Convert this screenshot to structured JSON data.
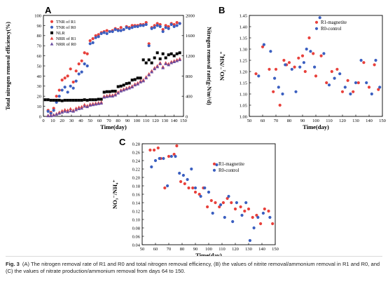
{
  "caption": {
    "label": "Fig. 3",
    "text": "(A) The nitrogen removal rate of R1 and R0 and total nitrogen removal efficiency, (B) the values of nitrite removal/ammonium removal in R1 and R0, and (C) the values of nitrate production/ammonium removal from days 64 to 150."
  },
  "chart_data": [
    {
      "panel": "A",
      "type": "scatter",
      "xlabel": "Time(day)",
      "ylabel": "Total nitrogen removal efficiency(%)",
      "y2label": "Nitrogen removal rate(g-N/m³/d)",
      "xlim": [
        0,
        150
      ],
      "xticks": [
        0,
        10,
        20,
        30,
        40,
        50,
        60,
        70,
        80,
        90,
        100,
        110,
        120,
        130,
        140,
        150
      ],
      "ylim": [
        0,
        100
      ],
      "yticks": [
        0,
        10,
        20,
        30,
        40,
        50,
        60,
        70,
        80,
        90,
        100
      ],
      "y2lim": [
        0,
        2000
      ],
      "y2ticks": [
        0,
        400,
        800,
        1200,
        1600,
        2000
      ],
      "legend_position": "top-left",
      "series": [
        {
          "name": "TNR of R1",
          "axis": "left",
          "marker": "circle",
          "color": "#e8413c",
          "x": [
            5,
            8,
            11,
            14,
            17,
            20,
            23,
            26,
            29,
            32,
            35,
            38,
            41,
            44,
            47,
            50,
            53,
            56,
            59,
            62,
            65,
            68,
            71,
            74,
            77,
            80,
            83,
            86,
            89,
            92,
            95,
            98,
            101,
            104,
            107,
            110,
            113,
            116,
            119,
            122,
            125,
            128,
            131,
            134,
            137,
            140,
            143,
            146
          ],
          "y": [
            6,
            4,
            8,
            20,
            26,
            36,
            38,
            40,
            47,
            34,
            45,
            52,
            55,
            63,
            62,
            75,
            77,
            80,
            81,
            83,
            84,
            85,
            84,
            85,
            87,
            86,
            88,
            86,
            89,
            88,
            90,
            90,
            90,
            91,
            91,
            93,
            72,
            88,
            90,
            92,
            91,
            86,
            90,
            89,
            92,
            91,
            93,
            92
          ]
        },
        {
          "name": "TNR of R0",
          "axis": "left",
          "marker": "circle",
          "color": "#3b5fc0",
          "x": [
            5,
            8,
            11,
            14,
            17,
            20,
            23,
            26,
            29,
            32,
            35,
            38,
            41,
            44,
            47,
            50,
            53,
            56,
            59,
            62,
            65,
            68,
            71,
            74,
            77,
            80,
            83,
            86,
            89,
            92,
            95,
            98,
            101,
            104,
            107,
            110,
            113,
            116,
            119,
            122,
            125,
            128,
            131,
            134,
            137,
            140,
            143,
            146
          ],
          "y": [
            5,
            3,
            6,
            14,
            20,
            26,
            29,
            24,
            30,
            28,
            35,
            42,
            44,
            52,
            50,
            72,
            73,
            78,
            79,
            82,
            83,
            82,
            84,
            84,
            86,
            85,
            85,
            86,
            88,
            87,
            88,
            89,
            89,
            90,
            90,
            91,
            70,
            87,
            88,
            90,
            89,
            84,
            88,
            87,
            91,
            89,
            90,
            92
          ]
        },
        {
          "name": "NLR",
          "axis": "right",
          "marker": "square",
          "color": "#000000",
          "x": [
            2,
            5,
            8,
            11,
            14,
            17,
            20,
            23,
            26,
            29,
            32,
            35,
            38,
            41,
            44,
            47,
            50,
            53,
            56,
            59,
            62,
            65,
            68,
            71,
            74,
            77,
            80,
            83,
            86,
            89,
            92,
            95,
            98,
            101,
            104,
            107,
            110,
            113,
            116,
            119,
            122,
            125,
            128,
            131,
            134,
            137,
            140,
            143,
            146
          ],
          "y": [
            330,
            330,
            320,
            320,
            320,
            320,
            310,
            320,
            320,
            320,
            320,
            320,
            320,
            320,
            330,
            320,
            330,
            330,
            330,
            340,
            340,
            480,
            490,
            490,
            500,
            500,
            590,
            600,
            620,
            650,
            660,
            720,
            730,
            760,
            760,
            1120,
            1060,
            1120,
            1060,
            1160,
            1260,
            1140,
            1240,
            1160,
            1220,
            1240,
            1200,
            1240,
            1260
          ]
        },
        {
          "name": "NRR of R1",
          "axis": "right",
          "marker": "triangle",
          "color": "#e8413c",
          "x": [
            5,
            8,
            11,
            14,
            17,
            20,
            23,
            26,
            29,
            32,
            35,
            38,
            41,
            44,
            47,
            50,
            53,
            56,
            59,
            62,
            65,
            68,
            71,
            74,
            77,
            80,
            83,
            86,
            89,
            92,
            95,
            98,
            101,
            104,
            107,
            110,
            113,
            116,
            119,
            122,
            125,
            128,
            131,
            134,
            137,
            140,
            143,
            146
          ],
          "y": [
            20,
            20,
            30,
            50,
            80,
            110,
            130,
            120,
            150,
            120,
            160,
            180,
            190,
            230,
            210,
            240,
            250,
            260,
            270,
            280,
            400,
            410,
            420,
            420,
            440,
            480,
            520,
            540,
            560,
            580,
            600,
            640,
            660,
            700,
            720,
            780,
            840,
            900,
            960,
            1000,
            1060,
            980,
            1060,
            1040,
            1080,
            1100,
            1120,
            1140
          ]
        },
        {
          "name": "NRR of R0",
          "axis": "right",
          "marker": "triangle",
          "color": "#6a4ea0",
          "x": [
            5,
            8,
            11,
            14,
            17,
            20,
            23,
            26,
            29,
            32,
            35,
            38,
            41,
            44,
            47,
            50,
            53,
            56,
            59,
            62,
            65,
            68,
            71,
            74,
            77,
            80,
            83,
            86,
            89,
            92,
            95,
            98,
            101,
            104,
            107,
            110,
            113,
            116,
            119,
            122,
            125,
            128,
            131,
            134,
            137,
            140,
            143,
            146
          ],
          "y": [
            10,
            10,
            20,
            40,
            60,
            80,
            100,
            90,
            110,
            100,
            130,
            150,
            160,
            200,
            190,
            220,
            230,
            240,
            250,
            260,
            380,
            390,
            400,
            400,
            420,
            460,
            500,
            520,
            540,
            560,
            580,
            620,
            640,
            680,
            700,
            760,
            820,
            880,
            940,
            980,
            1040,
            960,
            1040,
            1020,
            1060,
            1080,
            1100,
            1120
          ]
        }
      ]
    },
    {
      "panel": "B",
      "type": "scatter",
      "xlabel": "Time(day)",
      "ylabel": "NO₂⁻/NH₄⁺",
      "xlim": [
        50,
        150
      ],
      "xticks": [
        50,
        60,
        70,
        80,
        90,
        100,
        110,
        120,
        130,
        140,
        150
      ],
      "ylim": [
        1.0,
        1.45
      ],
      "yticks": [
        1.0,
        1.05,
        1.1,
        1.15,
        1.2,
        1.25,
        1.3,
        1.35,
        1.4,
        1.45
      ],
      "legend_position": "top-right",
      "series": [
        {
          "name": "R1-magnetite",
          "color": "#e8413c",
          "x": [
            55,
            60,
            65,
            68,
            70,
            73,
            76,
            78,
            80,
            84,
            87,
            90,
            92,
            95,
            98,
            100,
            104,
            108,
            112,
            116,
            120,
            124,
            128,
            132,
            136,
            140,
            144,
            147
          ],
          "y": [
            1.19,
            1.31,
            1.21,
            1.11,
            1.21,
            1.05,
            1.25,
            1.23,
            1.24,
            1.22,
            1.26,
            1.27,
            1.2,
            1.35,
            1.28,
            1.18,
            1.27,
            1.15,
            1.2,
            1.21,
            1.11,
            1.16,
            1.11,
            1.15,
            1.24,
            1.13,
            1.23,
            1.12
          ]
        },
        {
          "name": "R0-control",
          "color": "#3b5fc0",
          "x": [
            57,
            61,
            66,
            69,
            72,
            75,
            77,
            82,
            85,
            88,
            91,
            93,
            96,
            99,
            103,
            106,
            110,
            114,
            118,
            122,
            126,
            130,
            134,
            138,
            142,
            145,
            148
          ],
          "y": [
            1.18,
            1.32,
            1.29,
            1.17,
            1.13,
            1.1,
            1.23,
            1.21,
            1.11,
            1.22,
            1.24,
            1.3,
            1.29,
            1.22,
            1.44,
            1.28,
            1.14,
            1.17,
            1.19,
            1.13,
            1.1,
            1.15,
            1.25,
            1.15,
            1.1,
            1.25,
            1.13
          ]
        }
      ]
    },
    {
      "panel": "C",
      "type": "scatter",
      "xlabel": "Time(day)",
      "ylabel": "NO₃⁻/NH₄⁺",
      "xlim": [
        50,
        150
      ],
      "xticks": [
        50,
        60,
        70,
        80,
        90,
        100,
        110,
        120,
        130,
        140,
        150
      ],
      "ylim": [
        0.04,
        0.28
      ],
      "yticks": [
        0.04,
        0.06,
        0.08,
        0.1,
        0.12,
        0.14,
        0.16,
        0.18,
        0.2,
        0.22,
        0.24,
        0.26,
        0.28
      ],
      "legend_position": "top-right",
      "series": [
        {
          "name": "R1-magnetite",
          "color": "#e8413c",
          "x": [
            56,
            59,
            62,
            64,
            67,
            70,
            74,
            76,
            79,
            82,
            85,
            88,
            90,
            93,
            96,
            99,
            102,
            105,
            108,
            111,
            114,
            117,
            120,
            124,
            127,
            130,
            133,
            136,
            139,
            142,
            145,
            148
          ],
          "y": [
            0.265,
            0.265,
            0.27,
            0.245,
            0.175,
            0.25,
            0.255,
            0.275,
            0.19,
            0.185,
            0.175,
            0.175,
            0.165,
            0.16,
            0.175,
            0.13,
            0.145,
            0.14,
            0.13,
            0.14,
            0.15,
            0.14,
            0.125,
            0.13,
            0.12,
            0.125,
            0.105,
            0.11,
            0.09,
            0.125,
            0.12,
            0.09
          ]
        },
        {
          "name": "R0-control",
          "color": "#3b5fc0",
          "x": [
            57,
            60,
            63,
            66,
            69,
            72,
            75,
            78,
            81,
            84,
            87,
            90,
            94,
            97,
            100,
            103,
            106,
            109,
            112,
            115,
            118,
            121,
            125,
            128,
            131,
            134,
            137,
            141,
            146
          ],
          "y": [
            0.225,
            0.24,
            0.245,
            0.245,
            0.18,
            0.25,
            0.25,
            0.21,
            0.205,
            0.195,
            0.22,
            0.175,
            0.155,
            0.175,
            0.165,
            0.115,
            0.23,
            0.135,
            0.105,
            0.155,
            0.095,
            0.14,
            0.11,
            0.14,
            0.05,
            0.08,
            0.105,
            0.115,
            0.105
          ]
        }
      ]
    }
  ]
}
